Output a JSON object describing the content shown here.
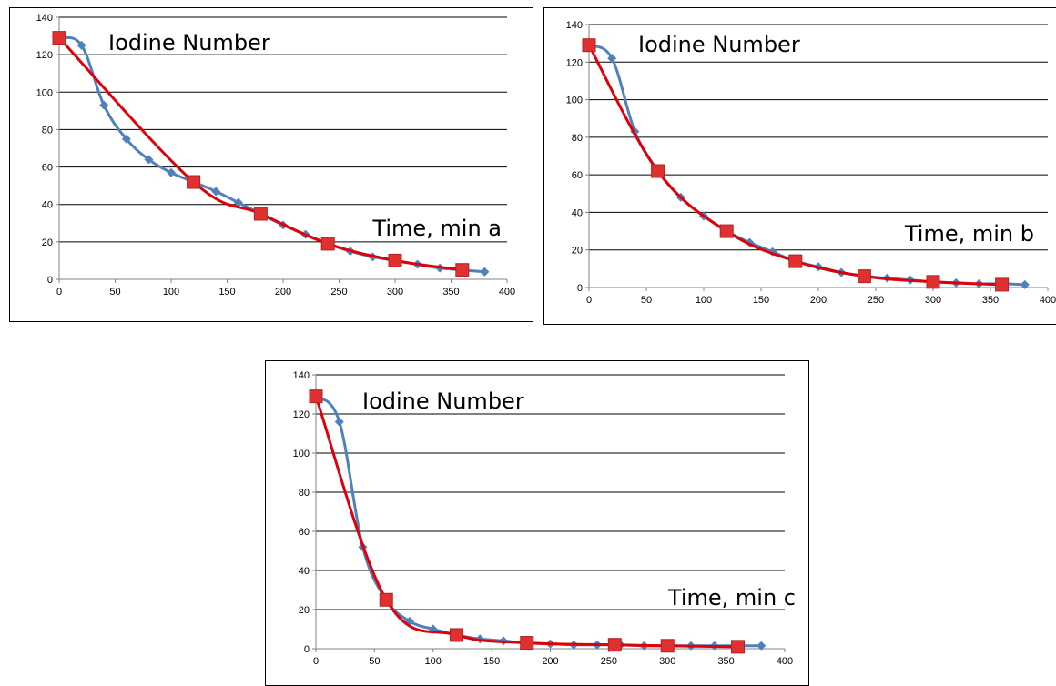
{
  "colors": {
    "measured": "#4f81bd",
    "model": "#e0000a",
    "marker_model": "#e03030",
    "grid": "#000000"
  },
  "chart_data": [
    {
      "type": "line",
      "title": "Iodine Number",
      "xlabel": "Time, min a",
      "ylabel": "",
      "xlim": [
        0,
        400
      ],
      "ylim": [
        0,
        140
      ],
      "x_ticks": [
        0,
        50,
        100,
        150,
        200,
        250,
        300,
        350,
        400
      ],
      "y_ticks": [
        0,
        20,
        40,
        60,
        80,
        100,
        120,
        140
      ],
      "grid": "horizontal",
      "series": [
        {
          "marker": "diamond",
          "color": "#4f81bd",
          "x": [
            0,
            20,
            40,
            60,
            80,
            100,
            120,
            140,
            160,
            180,
            200,
            220,
            240,
            260,
            280,
            300,
            320,
            340,
            360,
            380
          ],
          "y": [
            129,
            125,
            93,
            75,
            64,
            57,
            52,
            47,
            41,
            35,
            29,
            24,
            19,
            15,
            12,
            10,
            8,
            6,
            5,
            4
          ]
        },
        {
          "marker": "square",
          "color": "#e0000a",
          "x": [
            0,
            120,
            180,
            240,
            300,
            360
          ],
          "y": [
            129,
            52,
            35,
            19,
            10,
            5
          ]
        }
      ]
    },
    {
      "type": "line",
      "title": "Iodine Number",
      "xlabel": "Time, min b",
      "ylabel": "",
      "xlim": [
        0,
        400
      ],
      "ylim": [
        0,
        140
      ],
      "x_ticks": [
        0,
        50,
        100,
        150,
        200,
        250,
        300,
        350,
        400
      ],
      "y_ticks": [
        0,
        20,
        40,
        60,
        80,
        100,
        120,
        140
      ],
      "grid": "horizontal",
      "series": [
        {
          "marker": "diamond",
          "color": "#4f81bd",
          "x": [
            0,
            20,
            40,
            60,
            80,
            100,
            120,
            140,
            160,
            180,
            200,
            220,
            240,
            260,
            280,
            300,
            320,
            340,
            360,
            380
          ],
          "y": [
            129,
            122,
            83,
            62,
            48,
            38,
            30,
            24,
            19,
            14,
            11,
            8,
            6,
            5,
            4,
            3,
            2.5,
            2,
            2,
            1.5
          ]
        },
        {
          "marker": "square",
          "color": "#e0000a",
          "x": [
            0,
            60,
            120,
            180,
            240,
            300,
            360
          ],
          "y": [
            129,
            62,
            30,
            14,
            6,
            3,
            1.5
          ]
        }
      ]
    },
    {
      "type": "line",
      "title": "Iodine Number",
      "xlabel": "Time, min c",
      "ylabel": "",
      "xlim": [
        0,
        400
      ],
      "ylim": [
        0,
        140
      ],
      "x_ticks": [
        0,
        50,
        100,
        150,
        200,
        250,
        300,
        350,
        400
      ],
      "y_ticks": [
        0,
        20,
        40,
        60,
        80,
        100,
        120,
        140
      ],
      "grid": "horizontal",
      "series": [
        {
          "marker": "diamond",
          "color": "#4f81bd",
          "x": [
            0,
            20,
            40,
            60,
            80,
            100,
            120,
            140,
            160,
            180,
            200,
            220,
            240,
            260,
            280,
            300,
            320,
            340,
            360,
            380
          ],
          "y": [
            129,
            116,
            52,
            25,
            14,
            10,
            7,
            5,
            4,
            3,
            2.5,
            2,
            2,
            2,
            1.5,
            1.5,
            1.5,
            1.5,
            1.5,
            1.5
          ]
        },
        {
          "marker": "square",
          "color": "#e0000a",
          "x": [
            0,
            60,
            120,
            180,
            255,
            300,
            360
          ],
          "y": [
            129,
            25,
            7,
            3,
            2,
            1.5,
            1
          ]
        }
      ]
    }
  ]
}
